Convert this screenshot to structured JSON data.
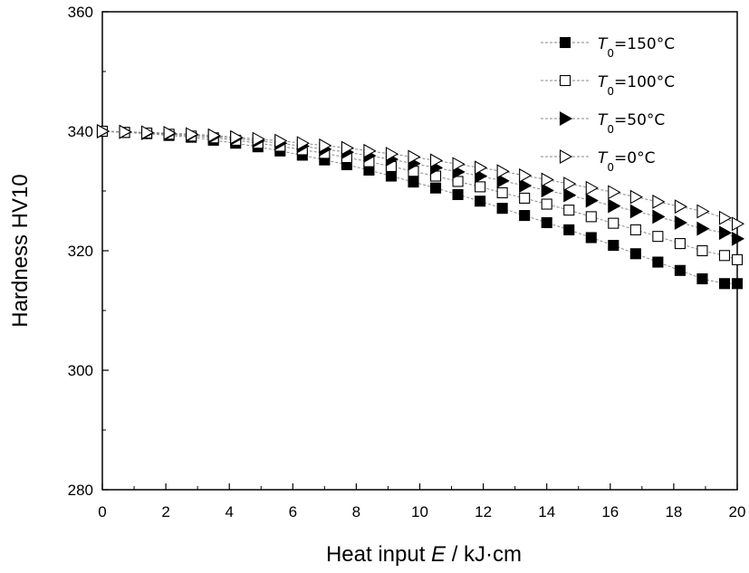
{
  "chart_data": {
    "type": "scatter",
    "title": "",
    "xlabel": "Heat input E / kJ·cm",
    "xlabel_parts": {
      "prefix": "Heat input ",
      "var": "E",
      "suffix": " / kJ·cm"
    },
    "ylabel": "Hardness HV10",
    "xlim": [
      0,
      20
    ],
    "ylim": [
      280,
      360
    ],
    "xticks": [
      "0",
      "2",
      "4",
      "6",
      "8",
      "10",
      "12",
      "14",
      "16",
      "18",
      "20"
    ],
    "yticks": [
      "280",
      "300",
      "320",
      "340",
      "360"
    ],
    "grid": false,
    "legend_position": "top-right",
    "x": [
      0,
      0.7,
      1.4,
      2.1,
      2.8,
      3.5,
      4.2,
      4.9,
      5.6,
      6.3,
      7.0,
      7.7,
      8.4,
      9.1,
      9.8,
      10.5,
      11.2,
      11.9,
      12.6,
      13.3,
      14.0,
      14.7,
      15.4,
      16.1,
      16.8,
      17.5,
      18.2,
      18.9,
      19.6,
      20.0
    ],
    "series": [
      {
        "name": "T0=150°C",
        "label_main": "T",
        "label_sub": "0",
        "label_rest": "=150°C",
        "marker": "square-filled",
        "values": [
          340.0,
          339.8,
          339.6,
          339.3,
          339.0,
          338.5,
          338.0,
          337.4,
          336.7,
          336.0,
          335.2,
          334.4,
          333.5,
          332.5,
          331.5,
          330.5,
          329.4,
          328.3,
          327.1,
          325.9,
          324.7,
          323.5,
          322.2,
          320.9,
          319.5,
          318.1,
          316.7,
          315.3,
          314.5,
          314.5
        ]
      },
      {
        "name": "T0=100°C",
        "label_main": "T",
        "label_sub": "0",
        "label_rest": "=100°C",
        "marker": "square-open",
        "values": [
          340.0,
          339.8,
          339.7,
          339.5,
          339.2,
          338.9,
          338.5,
          338.0,
          337.5,
          336.9,
          336.3,
          335.6,
          334.9,
          334.1,
          333.3,
          332.5,
          331.6,
          330.7,
          329.7,
          328.8,
          327.8,
          326.8,
          325.7,
          324.6,
          323.5,
          322.4,
          321.2,
          320.0,
          319.2,
          318.5
        ]
      },
      {
        "name": "T0=50°C",
        "label_main": "T",
        "label_sub": "0",
        "label_rest": "=50°C",
        "marker": "triangle-right-filled",
        "values": [
          340.0,
          339.9,
          339.7,
          339.6,
          339.4,
          339.1,
          338.8,
          338.4,
          338.0,
          337.5,
          337.0,
          336.5,
          335.9,
          335.3,
          334.6,
          333.9,
          333.2,
          332.5,
          331.7,
          330.9,
          330.1,
          329.3,
          328.4,
          327.5,
          326.6,
          325.7,
          324.7,
          323.7,
          323.0,
          322.0
        ]
      },
      {
        "name": "T0=0°C",
        "label_main": "T",
        "label_sub": "0",
        "label_rest": "=0°C",
        "marker": "triangle-right-open",
        "values": [
          340.0,
          339.9,
          339.8,
          339.7,
          339.5,
          339.3,
          339.0,
          338.7,
          338.4,
          338.0,
          337.6,
          337.2,
          336.7,
          336.2,
          335.7,
          335.1,
          334.5,
          333.9,
          333.3,
          332.6,
          331.9,
          331.2,
          330.5,
          329.8,
          329.0,
          328.2,
          327.4,
          326.6,
          325.5,
          324.5
        ]
      }
    ]
  }
}
